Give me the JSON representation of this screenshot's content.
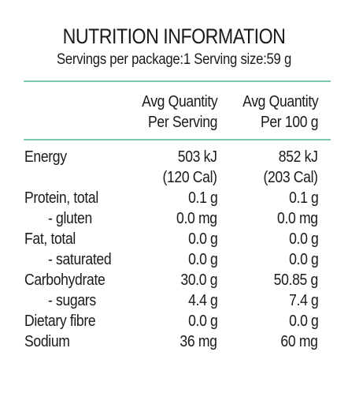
{
  "header": {
    "title": "NUTRITION INFORMATION",
    "subtitle": "Servings per package:1 Serving size:59 g"
  },
  "columns": {
    "serving_line1": "Avg Quantity",
    "serving_line2": "Per Serving",
    "per100_line1": "Avg Quantity",
    "per100_line2": "Per 100 g"
  },
  "rows": [
    {
      "name": "Energy",
      "serving": "503 kJ",
      "per100": "852 kJ",
      "serving_sub": "(120 Cal)",
      "per100_sub": "(203 Cal)"
    },
    {
      "name": "Protein, total",
      "serving": "0.1 g",
      "per100": "0.1 g"
    },
    {
      "name": "- gluten",
      "serving": "0.0 mg",
      "per100": "0.0 mg"
    },
    {
      "name": "Fat, total",
      "serving": "0.0 g",
      "per100": "0.0 g"
    },
    {
      "name": "- saturated",
      "serving": "0.0 g",
      "per100": "0.0 g"
    },
    {
      "name": "Carbohydrate",
      "serving": "30.0 g",
      "per100": "50.85 g"
    },
    {
      "name": "- sugars",
      "serving": "4.4 g",
      "per100": "7.4 g"
    },
    {
      "name": "Dietary fibre",
      "serving": "0.0 g",
      "per100": "0.0 g"
    },
    {
      "name": "Sodium",
      "serving": "36 mg",
      "per100": "60 mg"
    }
  ],
  "colors": {
    "rule": "#7cc8b3",
    "text": "#1a1a1a"
  }
}
